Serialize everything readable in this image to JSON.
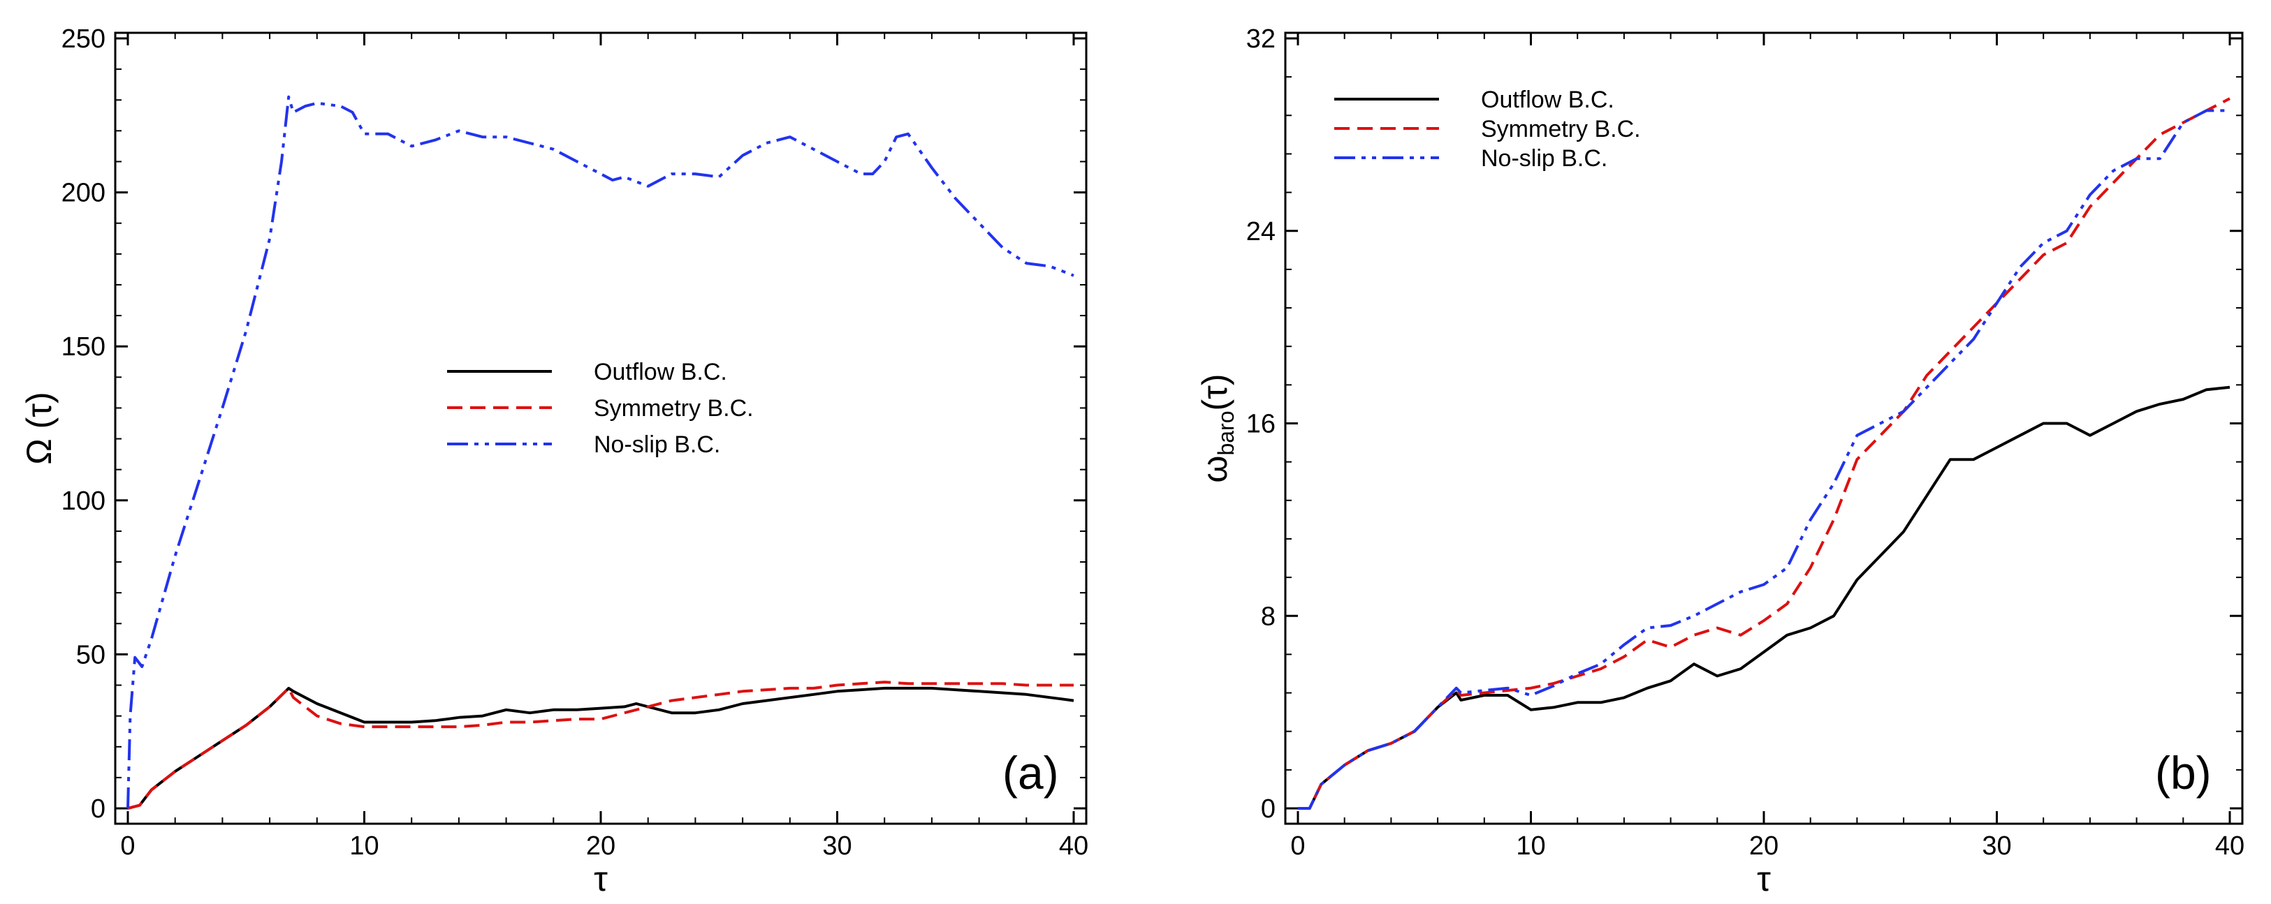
{
  "chart_data": [
    {
      "panel": "(a)",
      "type": "line",
      "xlabel": "τ",
      "ylabel": "Ω (τ)",
      "xlim": [
        0,
        40
      ],
      "ylim": [
        0,
        250
      ],
      "xticks": [
        "0",
        "10",
        "20",
        "30",
        "40"
      ],
      "yticks": [
        "0",
        "50",
        "100",
        "150",
        "200",
        "250"
      ],
      "legend_position": "center",
      "series": [
        {
          "name": "Outflow B.C.",
          "color": "#000000",
          "style": "solid",
          "x": [
            0,
            0.5,
            1,
            2,
            3,
            4,
            5,
            6,
            6.8,
            7,
            8,
            9,
            10,
            11,
            12,
            13,
            14,
            15,
            16,
            17,
            18,
            19,
            20,
            21,
            21.5,
            22,
            23,
            24,
            25,
            26,
            27,
            28,
            29,
            30,
            31,
            32,
            33,
            34,
            35,
            36,
            37,
            38,
            39,
            40
          ],
          "y": [
            0,
            1,
            6,
            12,
            17,
            22,
            27,
            33,
            39,
            38,
            34,
            31,
            28,
            28,
            28,
            28.5,
            29.5,
            30,
            32,
            31,
            32,
            32,
            32.5,
            33,
            34,
            33,
            31,
            31,
            32,
            34,
            35,
            36,
            37,
            38,
            38.5,
            39,
            39,
            39,
            38.5,
            38,
            37.5,
            37,
            36,
            35
          ]
        },
        {
          "name": "Symmetry B.C.",
          "color": "#dd1111",
          "style": "dashed",
          "x": [
            0,
            0.5,
            1,
            2,
            3,
            4,
            5,
            6,
            6.8,
            7,
            8,
            9,
            10,
            11,
            12,
            13,
            14,
            15,
            16,
            17,
            18,
            19,
            20,
            21,
            22,
            23,
            24,
            25,
            26,
            27,
            28,
            29,
            30,
            31,
            32,
            33,
            34,
            35,
            36,
            37,
            38,
            39,
            40
          ],
          "y": [
            0,
            1,
            6,
            12,
            17,
            22,
            27,
            33,
            39,
            36,
            30,
            27.5,
            26.5,
            26.5,
            26.5,
            26.5,
            26.5,
            27,
            28,
            28,
            28.5,
            29,
            29,
            31,
            33,
            35,
            36,
            37,
            38,
            38.5,
            39,
            39,
            40,
            40.5,
            41,
            40.5,
            40.5,
            40.5,
            40.5,
            40.5,
            40,
            40,
            40
          ]
        },
        {
          "name": "No-slip B.C.",
          "color": "#2233ee",
          "style": "dashdotdot",
          "x": [
            0,
            0.1,
            0.3,
            0.6,
            1,
            2,
            3,
            4,
            5,
            5.5,
            6,
            6.5,
            6.8,
            7,
            7.5,
            8,
            9,
            9.5,
            10,
            11,
            12,
            13,
            14,
            15,
            16,
            17,
            18,
            19,
            20,
            20.5,
            21,
            22,
            23,
            24,
            25,
            26,
            27,
            28,
            29,
            30,
            31,
            31.5,
            32,
            32.5,
            33,
            34,
            35,
            36,
            37,
            38,
            39,
            40
          ],
          "y": [
            0,
            30,
            49,
            46,
            55,
            82,
            106,
            130,
            155,
            170,
            185,
            210,
            231,
            226,
            228,
            229,
            228,
            226,
            219,
            219,
            215,
            217,
            220,
            218,
            218,
            216,
            214,
            210,
            206,
            204,
            205,
            202,
            206,
            206,
            205,
            212,
            216,
            218,
            214,
            210,
            206,
            206,
            210,
            218,
            219,
            208,
            198,
            190,
            182,
            177,
            176,
            173
          ]
        }
      ]
    },
    {
      "panel": "(b)",
      "type": "line",
      "xlabel": "τ",
      "ylabel": "ω",
      "ylabel_sub": "baro",
      "ylabel_suffix": "(τ)",
      "xlim": [
        0,
        40
      ],
      "ylim": [
        0,
        32
      ],
      "xticks": [
        "0",
        "10",
        "20",
        "30",
        "40"
      ],
      "yticks": [
        "0",
        "8",
        "16",
        "24",
        "32"
      ],
      "legend_position": "top-left",
      "series": [
        {
          "name": "Outflow B.C.",
          "color": "#000000",
          "style": "solid",
          "x": [
            0,
            0.5,
            1,
            2,
            3,
            4,
            5,
            6,
            6.8,
            7,
            8,
            9,
            10,
            11,
            12,
            13,
            14,
            15,
            16,
            17,
            18,
            19,
            20,
            21,
            22,
            23,
            24,
            25,
            26,
            27,
            28,
            29,
            30,
            31,
            32,
            33,
            34,
            35,
            36,
            37,
            38,
            39,
            40
          ],
          "y": [
            0,
            0,
            1.0,
            1.8,
            2.4,
            2.7,
            3.2,
            4.2,
            4.8,
            4.5,
            4.7,
            4.7,
            4.1,
            4.2,
            4.4,
            4.4,
            4.6,
            5.0,
            5.3,
            6.0,
            5.5,
            5.8,
            6.5,
            7.2,
            7.5,
            8.0,
            9.5,
            10.5,
            11.5,
            13.0,
            14.5,
            14.5,
            15.0,
            15.5,
            16.0,
            16.0,
            15.5,
            16.0,
            16.5,
            16.8,
            17.0,
            17.4,
            17.5
          ]
        },
        {
          "name": "Symmetry B.C.",
          "color": "#dd1111",
          "style": "dashed",
          "x": [
            0,
            0.5,
            1,
            2,
            3,
            4,
            5,
            6,
            6.8,
            7,
            8,
            9,
            10,
            11,
            12,
            13,
            14,
            15,
            16,
            17,
            18,
            19,
            20,
            21,
            22,
            23,
            24,
            25,
            26,
            27,
            28,
            29,
            30,
            31,
            32,
            33,
            34,
            35,
            36,
            37,
            38,
            39,
            40
          ],
          "y": [
            0,
            0,
            1.0,
            1.8,
            2.4,
            2.7,
            3.2,
            4.2,
            4.9,
            4.7,
            4.8,
            4.9,
            5.0,
            5.2,
            5.5,
            5.8,
            6.3,
            7.0,
            6.7,
            7.2,
            7.5,
            7.2,
            7.8,
            8.5,
            10.0,
            12.0,
            14.5,
            15.5,
            16.5,
            18.0,
            19.0,
            20.0,
            21.0,
            22.0,
            23.0,
            23.5,
            25.0,
            26.0,
            27.0,
            28.0,
            28.5,
            29.0,
            29.5
          ]
        },
        {
          "name": "No-slip B.C.",
          "color": "#2233ee",
          "style": "dashdotdot",
          "x": [
            0,
            0.5,
            1,
            2,
            3,
            4,
            5,
            6,
            6.8,
            7,
            8,
            9,
            10,
            11,
            12,
            13,
            14,
            15,
            16,
            17,
            18,
            19,
            20,
            21,
            22,
            23,
            24,
            25,
            26,
            27,
            28,
            29,
            30,
            31,
            32,
            33,
            34,
            35,
            36,
            37,
            38,
            39,
            40
          ],
          "y": [
            0,
            0,
            1.0,
            1.8,
            2.4,
            2.7,
            3.2,
            4.2,
            5.0,
            4.8,
            4.9,
            5.0,
            4.7,
            5.1,
            5.6,
            6.0,
            6.8,
            7.5,
            7.6,
            8.0,
            8.5,
            9.0,
            9.3,
            10.0,
            12.0,
            13.5,
            15.5,
            16.0,
            16.5,
            17.5,
            18.5,
            19.5,
            21.0,
            22.5,
            23.5,
            24.0,
            25.5,
            26.5,
            27.0,
            27.0,
            28.5,
            29.0,
            29.0
          ]
        }
      ]
    }
  ]
}
